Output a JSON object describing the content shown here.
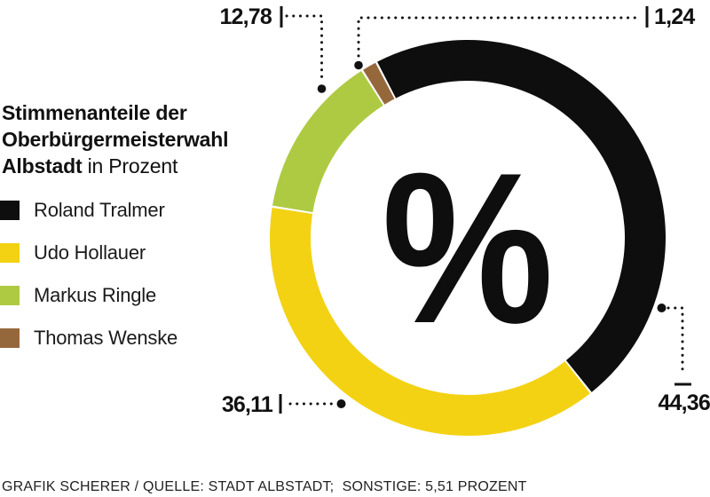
{
  "title": {
    "line1": "Stimmenanteile der",
    "line2": "Oberbürgermeisterwahl",
    "line3_bold": "Albstadt",
    "line3_regular": " in Prozent"
  },
  "legend": {
    "items": [
      {
        "label": "Roland Tralmer",
        "color": "#0e0e0e"
      },
      {
        "label": "Udo Hollauer",
        "color": "#f3d213"
      },
      {
        "label": "Markus Ringle",
        "color": "#aeca43"
      },
      {
        "label": "Thomas Wenske",
        "color": "#95683c"
      }
    ]
  },
  "donut": {
    "center_symbol": "%"
  },
  "annotations": {
    "ringle": "12,78",
    "wenske": "1,24",
    "hollauer": "36,11",
    "tralmer": "44,36"
  },
  "footer": {
    "text": "GRAFIK SCHERER / QUELLE: STADT ALBSTADT;  SONSTIGE: 5,51 PROZENT"
  },
  "chart_data": {
    "type": "pie",
    "subtype": "donut",
    "title": "Stimmenanteile der Oberbürgermeisterwahl Albstadt in Prozent",
    "unit": "Prozent",
    "series": [
      {
        "name": "Roland Tralmer",
        "value": 44.36,
        "label": "44,36",
        "color": "#0e0e0e"
      },
      {
        "name": "Udo Hollauer",
        "value": 36.11,
        "label": "36,11",
        "color": "#f3d213"
      },
      {
        "name": "Markus Ringle",
        "value": 12.78,
        "label": "12,78",
        "color": "#aeca43"
      },
      {
        "name": "Thomas Wenske",
        "value": 1.24,
        "label": "1,24",
        "color": "#95683c"
      }
    ],
    "other": {
      "name": "Sonstige",
      "value": 5.51,
      "shown_in_donut": false
    },
    "normalized_to_360": true,
    "start_angle_deg": -27.5,
    "center_symbol": "%",
    "legend_position": "left"
  }
}
